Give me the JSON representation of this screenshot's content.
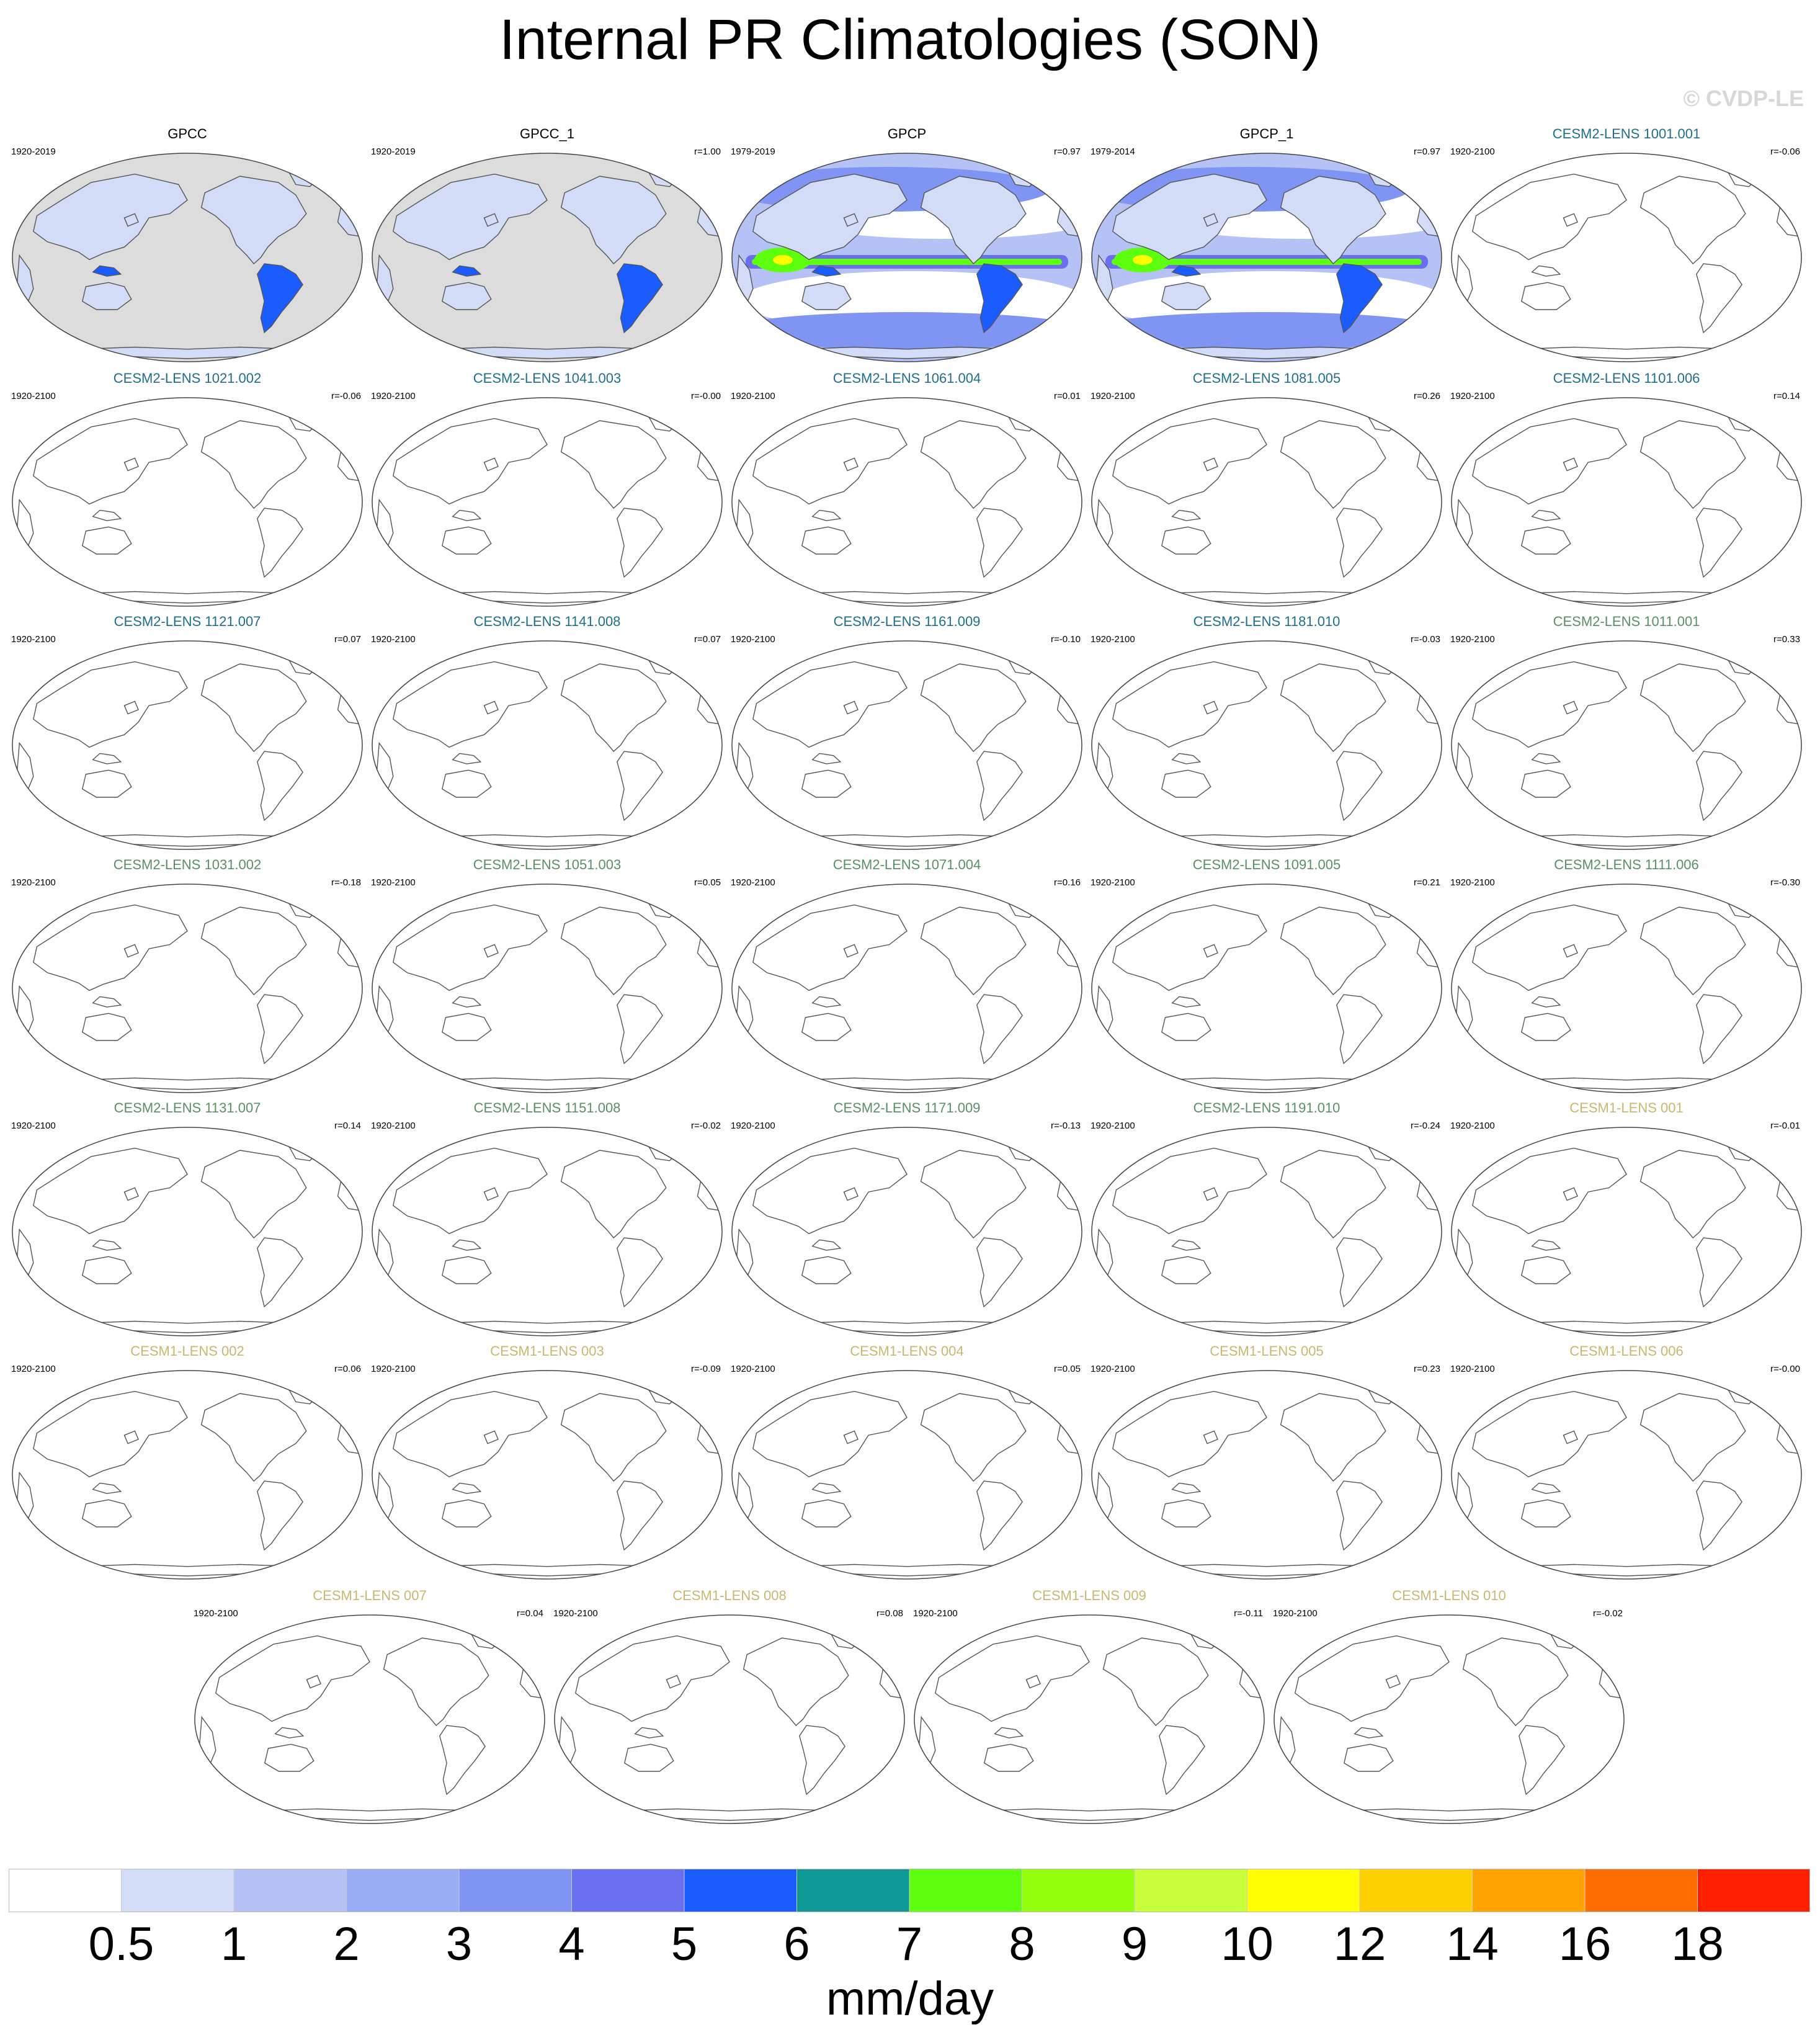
{
  "title": "Internal PR Climatologies (SON)",
  "watermark": "© CVDP-LE",
  "panels": [
    {
      "name": "GPCC",
      "period": "1920-2019",
      "corr": "",
      "group": "obs",
      "filled": true,
      "ocean_masked": true
    },
    {
      "name": "GPCC_1",
      "period": "1920-2019",
      "corr": "r=1.00",
      "group": "obs",
      "filled": true,
      "ocean_masked": true
    },
    {
      "name": "GPCP",
      "period": "1979-2019",
      "corr": "r=0.97",
      "group": "obs",
      "filled": true,
      "ocean_masked": false
    },
    {
      "name": "GPCP_1",
      "period": "1979-2014",
      "corr": "r=0.97",
      "group": "obs",
      "filled": true,
      "ocean_masked": false
    },
    {
      "name": "CESM2-LENS 1001.001",
      "period": "1920-2100",
      "corr": "r=-0.06",
      "group": "cesm2a",
      "filled": false
    },
    {
      "name": "CESM2-LENS 1021.002",
      "period": "1920-2100",
      "corr": "r=-0.06",
      "group": "cesm2a",
      "filled": false
    },
    {
      "name": "CESM2-LENS 1041.003",
      "period": "1920-2100",
      "corr": "r=-0.00",
      "group": "cesm2a",
      "filled": false
    },
    {
      "name": "CESM2-LENS 1061.004",
      "period": "1920-2100",
      "corr": "r=0.01",
      "group": "cesm2a",
      "filled": false
    },
    {
      "name": "CESM2-LENS 1081.005",
      "period": "1920-2100",
      "corr": "r=0.26",
      "group": "cesm2a",
      "filled": false
    },
    {
      "name": "CESM2-LENS 1101.006",
      "period": "1920-2100",
      "corr": "r=0.14",
      "group": "cesm2a",
      "filled": false
    },
    {
      "name": "CESM2-LENS 1121.007",
      "period": "1920-2100",
      "corr": "r=0.07",
      "group": "cesm2a",
      "filled": false
    },
    {
      "name": "CESM2-LENS 1141.008",
      "period": "1920-2100",
      "corr": "r=0.07",
      "group": "cesm2a",
      "filled": false
    },
    {
      "name": "CESM2-LENS 1161.009",
      "period": "1920-2100",
      "corr": "r=-0.10",
      "group": "cesm2a",
      "filled": false
    },
    {
      "name": "CESM2-LENS 1181.010",
      "period": "1920-2100",
      "corr": "r=-0.03",
      "group": "cesm2a",
      "filled": false
    },
    {
      "name": "CESM2-LENS 1011.001",
      "period": "1920-2100",
      "corr": "r=0.33",
      "group": "cesm2b",
      "filled": false
    },
    {
      "name": "CESM2-LENS 1031.002",
      "period": "1920-2100",
      "corr": "r=-0.18",
      "group": "cesm2b",
      "filled": false
    },
    {
      "name": "CESM2-LENS 1051.003",
      "period": "1920-2100",
      "corr": "r=0.05",
      "group": "cesm2b",
      "filled": false
    },
    {
      "name": "CESM2-LENS 1071.004",
      "period": "1920-2100",
      "corr": "r=0.16",
      "group": "cesm2b",
      "filled": false
    },
    {
      "name": "CESM2-LENS 1091.005",
      "period": "1920-2100",
      "corr": "r=0.21",
      "group": "cesm2b",
      "filled": false
    },
    {
      "name": "CESM2-LENS 1111.006",
      "period": "1920-2100",
      "corr": "r=-0.30",
      "group": "cesm2b",
      "filled": false
    },
    {
      "name": "CESM2-LENS 1131.007",
      "period": "1920-2100",
      "corr": "r=0.14",
      "group": "cesm2b",
      "filled": false
    },
    {
      "name": "CESM2-LENS 1151.008",
      "period": "1920-2100",
      "corr": "r=-0.02",
      "group": "cesm2b",
      "filled": false
    },
    {
      "name": "CESM2-LENS 1171.009",
      "period": "1920-2100",
      "corr": "r=-0.13",
      "group": "cesm2b",
      "filled": false
    },
    {
      "name": "CESM2-LENS 1191.010",
      "period": "1920-2100",
      "corr": "r=-0.24",
      "group": "cesm2b",
      "filled": false
    },
    {
      "name": "CESM1-LENS 001",
      "period": "1920-2100",
      "corr": "r=-0.01",
      "group": "cesm1",
      "filled": false
    },
    {
      "name": "CESM1-LENS 002",
      "period": "1920-2100",
      "corr": "r=0.06",
      "group": "cesm1",
      "filled": false
    },
    {
      "name": "CESM1-LENS 003",
      "period": "1920-2100",
      "corr": "r=-0.09",
      "group": "cesm1",
      "filled": false
    },
    {
      "name": "CESM1-LENS 004",
      "period": "1920-2100",
      "corr": "r=0.05",
      "group": "cesm1",
      "filled": false
    },
    {
      "name": "CESM1-LENS 005",
      "period": "1920-2100",
      "corr": "r=0.23",
      "group": "cesm1",
      "filled": false
    },
    {
      "name": "CESM1-LENS 006",
      "period": "1920-2100",
      "corr": "r=-0.00",
      "group": "cesm1",
      "filled": false
    },
    {
      "name": "CESM1-LENS 007",
      "period": "1920-2100",
      "corr": "r=0.04",
      "group": "cesm1",
      "filled": false
    },
    {
      "name": "CESM1-LENS 008",
      "period": "1920-2100",
      "corr": "r=0.08",
      "group": "cesm1",
      "filled": false
    },
    {
      "name": "CESM1-LENS 009",
      "period": "1920-2100",
      "corr": "r=-0.11",
      "group": "cesm1",
      "filled": false
    },
    {
      "name": "CESM1-LENS 010",
      "period": "1920-2100",
      "corr": "r=-0.02",
      "group": "cesm1",
      "filled": false
    }
  ],
  "colorbar": {
    "levels": [
      "0.5",
      "1",
      "2",
      "3",
      "4",
      "5",
      "6",
      "7",
      "8",
      "9",
      "10",
      "12",
      "14",
      "16",
      "18"
    ],
    "colors": [
      "#ffffff",
      "#d3dcf7",
      "#b4c2f5",
      "#98aff6",
      "#8094f4",
      "#6a6ff0",
      "#1a5cff",
      "#0d9896",
      "#5cff0e",
      "#94ff0c",
      "#c7ff3a",
      "#ffff00",
      "#ffd000",
      "#ffa300",
      "#ff6e00",
      "#ff1e00"
    ],
    "units": "mm/day"
  }
}
